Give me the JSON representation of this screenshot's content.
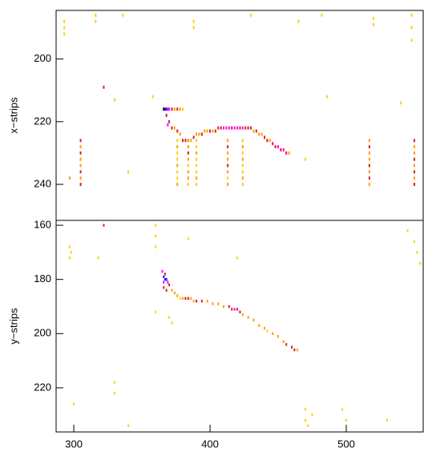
{
  "chart_data": [
    {
      "type": "heatmap",
      "ylabel": "x−strips",
      "colorscale": [
        "#ffd200",
        "#ffa000",
        "#e0202a",
        "#ff00ff",
        "#2020ff",
        "#000000"
      ],
      "xlim": [
        287,
        556.5
      ],
      "ylim": [
        184.5,
        251.5
      ],
      "yticks": [
        200,
        220,
        240
      ],
      "x": [
        366,
        367,
        368,
        369,
        370,
        372,
        374,
        376,
        378,
        380,
        368,
        370,
        369,
        372,
        374,
        376,
        378,
        380,
        382,
        384,
        386,
        388,
        390,
        392,
        394,
        396,
        398,
        400,
        402,
        404,
        406,
        408,
        410,
        412,
        414,
        416,
        418,
        420,
        422,
        424,
        426,
        428,
        430,
        432,
        434,
        436,
        438,
        440,
        442,
        444,
        446,
        448,
        450,
        452,
        454,
        456,
        458,
        305,
        305,
        305,
        305,
        305,
        305,
        305,
        305,
        376,
        376,
        376,
        376,
        376,
        376,
        376,
        376,
        384,
        384,
        384,
        384,
        384,
        384,
        384,
        384,
        390,
        390,
        390,
        390,
        390,
        390,
        390,
        390,
        413,
        413,
        413,
        413,
        413,
        413,
        413,
        413,
        424,
        424,
        424,
        424,
        424,
        424,
        424,
        424,
        517,
        517,
        517,
        517,
        517,
        517,
        517,
        517,
        550,
        550,
        550,
        550,
        550,
        550,
        550,
        550,
        293,
        293,
        293,
        316,
        316,
        336,
        388,
        388,
        430,
        465,
        482,
        520,
        520,
        548,
        548,
        548,
        322,
        330,
        358,
        486,
        540,
        297,
        340,
        470
      ],
      "y": [
        216,
        216,
        216,
        216,
        216,
        216,
        216,
        216,
        216,
        216,
        218,
        220,
        221,
        222,
        222,
        223,
        224,
        226,
        226,
        226,
        226,
        225,
        224,
        224,
        224,
        223,
        223,
        223,
        223,
        223,
        222,
        222,
        222,
        222,
        222,
        222,
        222,
        222,
        222,
        222,
        222,
        222,
        222,
        223,
        223,
        224,
        224,
        225,
        226,
        226,
        227,
        228,
        228,
        229,
        229,
        230,
        230,
        226,
        228,
        230,
        232,
        234,
        236,
        238,
        240,
        226,
        228,
        230,
        232,
        234,
        236,
        238,
        240,
        226,
        228,
        230,
        232,
        234,
        236,
        238,
        240,
        226,
        228,
        230,
        232,
        234,
        236,
        238,
        240,
        226,
        228,
        230,
        232,
        234,
        236,
        238,
        240,
        226,
        228,
        230,
        232,
        234,
        236,
        238,
        240,
        226,
        228,
        230,
        232,
        234,
        236,
        238,
        240,
        226,
        228,
        230,
        232,
        234,
        236,
        238,
        240,
        188,
        190,
        192,
        186,
        188,
        186,
        188,
        190,
        186,
        188,
        186,
        187,
        189,
        186,
        190,
        194,
        209,
        213,
        212,
        212,
        214,
        238,
        236,
        232
      ],
      "values": [
        6,
        5,
        5,
        4,
        4,
        3,
        2,
        3,
        2,
        1,
        3,
        3,
        4,
        3,
        2,
        3,
        2,
        3,
        3,
        3,
        2,
        3,
        2,
        2,
        3,
        2,
        2,
        3,
        2,
        3,
        3,
        3,
        4,
        4,
        4,
        3,
        4,
        4,
        3,
        4,
        3,
        3,
        3,
        2,
        3,
        2,
        2,
        3,
        3,
        2,
        3,
        3,
        4,
        3,
        4,
        3,
        2,
        3,
        2,
        3,
        2,
        2,
        3,
        2,
        3,
        1,
        2,
        1,
        1,
        2,
        1,
        1,
        2,
        2,
        2,
        3,
        2,
        1,
        2,
        2,
        1,
        1,
        1,
        2,
        1,
        1,
        1,
        2,
        1,
        2,
        3,
        2,
        2,
        3,
        2,
        1,
        2,
        1,
        2,
        1,
        2,
        1,
        1,
        2,
        1,
        2,
        3,
        2,
        2,
        3,
        2,
        3,
        2,
        3,
        2,
        2,
        3,
        2,
        3,
        2,
        3,
        1,
        1,
        1,
        1,
        1,
        1,
        1,
        1,
        1,
        1,
        1,
        1,
        1,
        1,
        1,
        1,
        3,
        1,
        1,
        1,
        1,
        2,
        1,
        1
      ]
    },
    {
      "type": "heatmap",
      "ylabel": "y−strips",
      "colorscale": [
        "#ffd200",
        "#ffa000",
        "#e0202a",
        "#ff00ff",
        "#2020ff",
        "#000000"
      ],
      "xlim": [
        287,
        556.5
      ],
      "ylim": [
        158.2,
        236.3
      ],
      "yticks": [
        160,
        180,
        200,
        220
      ],
      "xticks": [
        300,
        400,
        500
      ],
      "x": [
        365,
        367,
        366,
        367,
        368,
        366,
        369,
        370,
        366,
        368,
        372,
        374,
        376,
        378,
        380,
        382,
        384,
        386,
        388,
        390,
        394,
        398,
        402,
        406,
        410,
        414,
        416,
        418,
        420,
        422,
        424,
        428,
        432,
        436,
        440,
        442,
        446,
        450,
        454,
        456,
        460,
        462,
        464,
        322,
        297,
        298,
        297,
        318,
        360,
        360,
        360,
        384,
        420,
        360,
        370,
        372,
        330,
        330,
        470,
        470,
        472,
        475,
        497,
        500,
        530,
        545,
        550,
        552,
        554,
        300,
        340
      ],
      "y": [
        177,
        178,
        179,
        180,
        180,
        181,
        181,
        182,
        183,
        184,
        184,
        185,
        186,
        187,
        187,
        187,
        187,
        187,
        188,
        188,
        188,
        188,
        189,
        189,
        190,
        190,
        191,
        191,
        191,
        192,
        193,
        194,
        195,
        197,
        198,
        199,
        200,
        201,
        203,
        204,
        205,
        206,
        206,
        160,
        168,
        170,
        172,
        172,
        160,
        164,
        168,
        165,
        172,
        192,
        194,
        196,
        218,
        222,
        228,
        232,
        234,
        230,
        228,
        232,
        232,
        162,
        166,
        170,
        174,
        226,
        234
      ],
      "values": [
        4,
        3,
        5,
        5,
        5,
        4,
        4,
        3,
        3,
        3,
        2,
        2,
        2,
        1,
        2,
        3,
        3,
        2,
        2,
        3,
        3,
        2,
        2,
        2,
        2,
        3,
        3,
        4,
        3,
        3,
        2,
        2,
        2,
        2,
        2,
        1,
        2,
        2,
        2,
        3,
        3,
        3,
        2,
        3,
        1,
        1,
        1,
        1,
        1,
        1,
        1,
        1,
        1,
        1,
        1,
        1,
        1,
        1,
        1,
        1,
        1,
        1,
        1,
        1,
        1,
        1,
        1,
        1,
        1,
        1,
        1
      ]
    }
  ]
}
